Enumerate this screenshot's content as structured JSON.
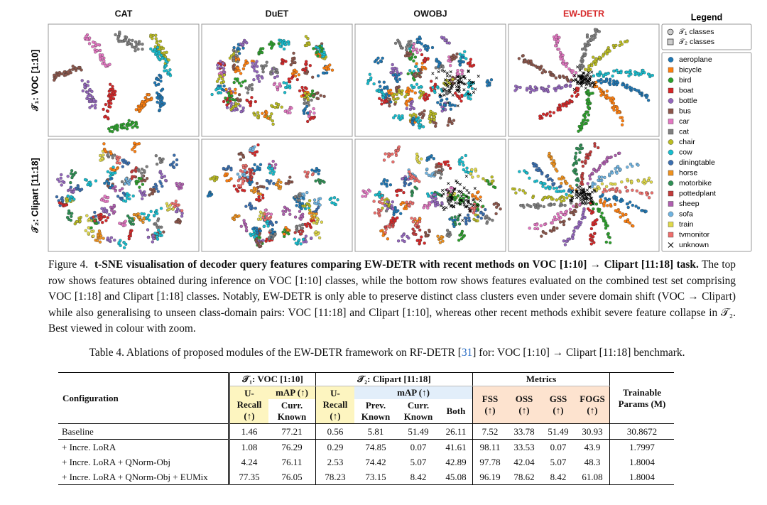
{
  "figure": {
    "columns": [
      "CAT",
      "DuET",
      "OWOBJ",
      "EW-DETR"
    ],
    "rows": [
      "𝒯₁: VOC [1:10]",
      "𝒯₂: Clipart [11:18]"
    ],
    "legend": {
      "title": "Legend",
      "markers": [
        "𝒯₁ classes",
        "𝒯₂ classes"
      ],
      "classes": [
        {
          "name": "aeroplane",
          "color": "#1f77b4"
        },
        {
          "name": "bicycle",
          "color": "#ff7f0e"
        },
        {
          "name": "bird",
          "color": "#2ca02c"
        },
        {
          "name": "boat",
          "color": "#d62728"
        },
        {
          "name": "bottle",
          "color": "#9467bd"
        },
        {
          "name": "bus",
          "color": "#8c564b"
        },
        {
          "name": "car",
          "color": "#e377c2"
        },
        {
          "name": "cat",
          "color": "#7f7f7f"
        },
        {
          "name": "chair",
          "color": "#bcbd22"
        },
        {
          "name": "cow",
          "color": "#17becf"
        },
        {
          "name": "diningtable",
          "color": "#3a6fb0"
        },
        {
          "name": "horse",
          "color": "#f0921e"
        },
        {
          "name": "motorbike",
          "color": "#2f8f55"
        },
        {
          "name": "pottedplant",
          "color": "#c23b3b"
        },
        {
          "name": "sheep",
          "color": "#b05fb0"
        },
        {
          "name": "sofa",
          "color": "#6fb3e0"
        },
        {
          "name": "train",
          "color": "#e0d94a"
        },
        {
          "name": "tvmonitor",
          "color": "#ef6f6c"
        }
      ],
      "unknown": "unknown"
    },
    "caption": {
      "label": "Figure 4.",
      "bold": "t-SNE visualisation of decoder query features comparing EW-DETR with recent methods on VOC [1:10] → Clipart [11:18] task.",
      "text": "The top row shows features obtained during inference on VOC [1:10] classes, while the bottom row shows features evaluated on the combined test set comprising VOC [1:18] and Clipart [1:18] classes. Notably, EW-DETR is only able to preserve distinct class clusters even under severe domain shift (VOC → Clipart) while also generalising to unseen class-domain pairs: VOC [11:18] and Clipart [1:10], whereas other recent methods exhibit severe feature collapse in 𝒯₂. Best viewed in colour with zoom."
    }
  },
  "table": {
    "caption": {
      "prefix": "Table 4. Ablations of proposed modules of the EW-DETR framework on RF-DETR [",
      "ref": "31",
      "suffix": "] for: VOC [1:10] → Clipart [11:18] benchmark."
    },
    "columns": {
      "configuration": "Configuration",
      "t1": "𝒯₁: VOC [1:10]",
      "t2": "𝒯₂: Clipart [11:18]",
      "metrics": "Metrics",
      "params": "Trainable Params (M)",
      "u_recall": "U-Recall (↑)",
      "map": "mAP (↑)",
      "curr_known": "Curr. Known",
      "prev_known": "Prev. Known",
      "both": "Both",
      "fss": "FSS (↑)",
      "oss": "OSS (↑)",
      "gss": "GSS (↑)",
      "fogs": "FOGS (↑)"
    },
    "rows": [
      [
        "Baseline",
        1.46,
        77.21,
        0.56,
        5.81,
        51.49,
        26.11,
        7.52,
        33.78,
        51.49,
        30.93,
        30.8672
      ],
      [
        "+ Incre. LoRA",
        1.08,
        76.29,
        0.29,
        74.85,
        0.07,
        41.61,
        98.11,
        33.53,
        0.07,
        43.9,
        1.7997
      ],
      [
        "+ Incre. LoRA + QNorm-Obj",
        4.24,
        76.11,
        2.53,
        74.42,
        5.07,
        42.89,
        97.78,
        42.04,
        5.07,
        48.3,
        1.8004
      ],
      [
        "+ Incre. LoRA + QNorm-Obj + EUMix",
        77.35,
        76.05,
        78.23,
        73.15,
        8.42,
        45.08,
        96.19,
        78.62,
        8.42,
        61.08,
        1.8004
      ]
    ]
  }
}
